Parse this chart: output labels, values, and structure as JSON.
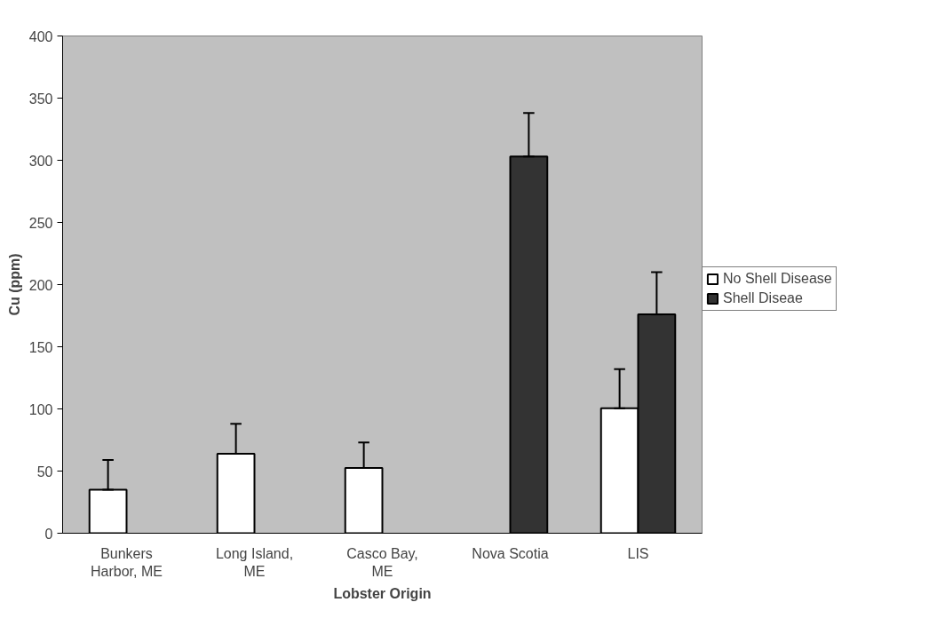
{
  "chart_data": {
    "type": "bar",
    "xlabel": "Lobster Origin",
    "ylabel": "Cu (ppm)",
    "categories": [
      "Bunkers\nHarbor, ME",
      "Long Island,\nME",
      "Casco Bay,\nME",
      "Nova Scotia",
      "LIS"
    ],
    "series": [
      {
        "name": "No Shell Disease",
        "color": "#ffffff",
        "values": [
          35,
          64,
          52.5,
          null,
          100.5
        ],
        "errors": [
          [
            35,
            59
          ],
          [
            64,
            88
          ],
          [
            52.5,
            73
          ],
          null,
          [
            100.5,
            132
          ]
        ]
      },
      {
        "name": "Shell Diseae",
        "color": "#333333",
        "values": [
          null,
          null,
          null,
          303,
          176
        ],
        "errors": [
          null,
          null,
          null,
          [
            303,
            338
          ],
          [
            176,
            210
          ]
        ]
      }
    ],
    "ylim": [
      0,
      400
    ],
    "yticks": [
      0,
      50,
      100,
      150,
      200,
      250,
      300,
      350,
      400
    ],
    "grid": false,
    "legend": "right"
  }
}
